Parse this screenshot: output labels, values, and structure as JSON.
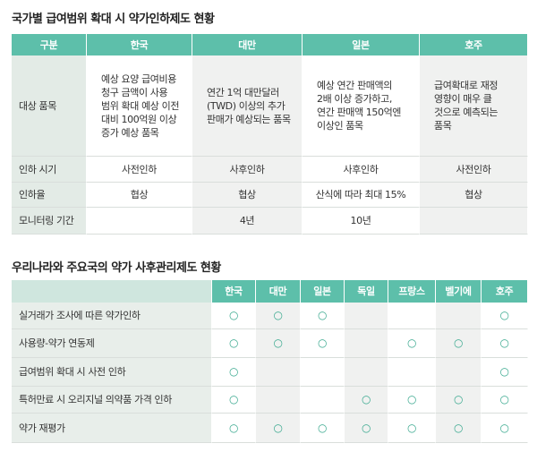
{
  "title1": "국가별 급여범위 확대 시 약가인하제도 현황",
  "table1": {
    "header": [
      "구분",
      "한국",
      "대만",
      "일본",
      "호주"
    ],
    "rows": [
      [
        "대상 품목",
        "예상 요양 급여비용 청구 금액이 사용 범위 확대 예상 이전 대비 100억원 이상 증가 예상 품목",
        "연간 1억 대만달러 (TWD) 이상의 추가 판매가 예상되는 품목",
        "예상 연간 판매액의 2배 이상 증가하고, 연간 판매액 150억엔 이상인 품목",
        "급여확대로 재정 영향이 매우 클 것으로 예측되는 품목"
      ],
      [
        "인하 시기",
        "사전인하",
        "사후인하",
        "사후인하",
        "사전인하"
      ],
      [
        "인하율",
        "협상",
        "협상",
        "산식에 따라 최대 15%",
        "협상"
      ],
      [
        "모니터링 기간",
        null,
        "4년",
        "10년",
        null
      ]
    ]
  },
  "title2": "우리나라와 주요국의 약가 사후관리제도 현황",
  "table2": {
    "header": [
      null,
      "한국",
      "대만",
      "일본",
      "독일",
      "프랑스",
      "벨기에",
      "호주"
    ],
    "rows": [
      [
        "실거래가 조사에 따른 약가인하",
        "○",
        "○",
        "○",
        null,
        null,
        null,
        "○"
      ],
      [
        "사용량-약가 연동제",
        "○",
        "○",
        "○",
        null,
        "○",
        "○",
        "○"
      ],
      [
        "급여범위 확대 시 사전 인하",
        "○",
        null,
        null,
        null,
        null,
        null,
        "○"
      ],
      [
        "특허만료 시 오리지널 의약품 가격 인하",
        "○",
        null,
        null,
        "○",
        "○",
        "○",
        "○"
      ],
      [
        "약가 재평가",
        "○",
        "○",
        "○",
        "○",
        "○",
        "○",
        "○"
      ]
    ]
  }
}
